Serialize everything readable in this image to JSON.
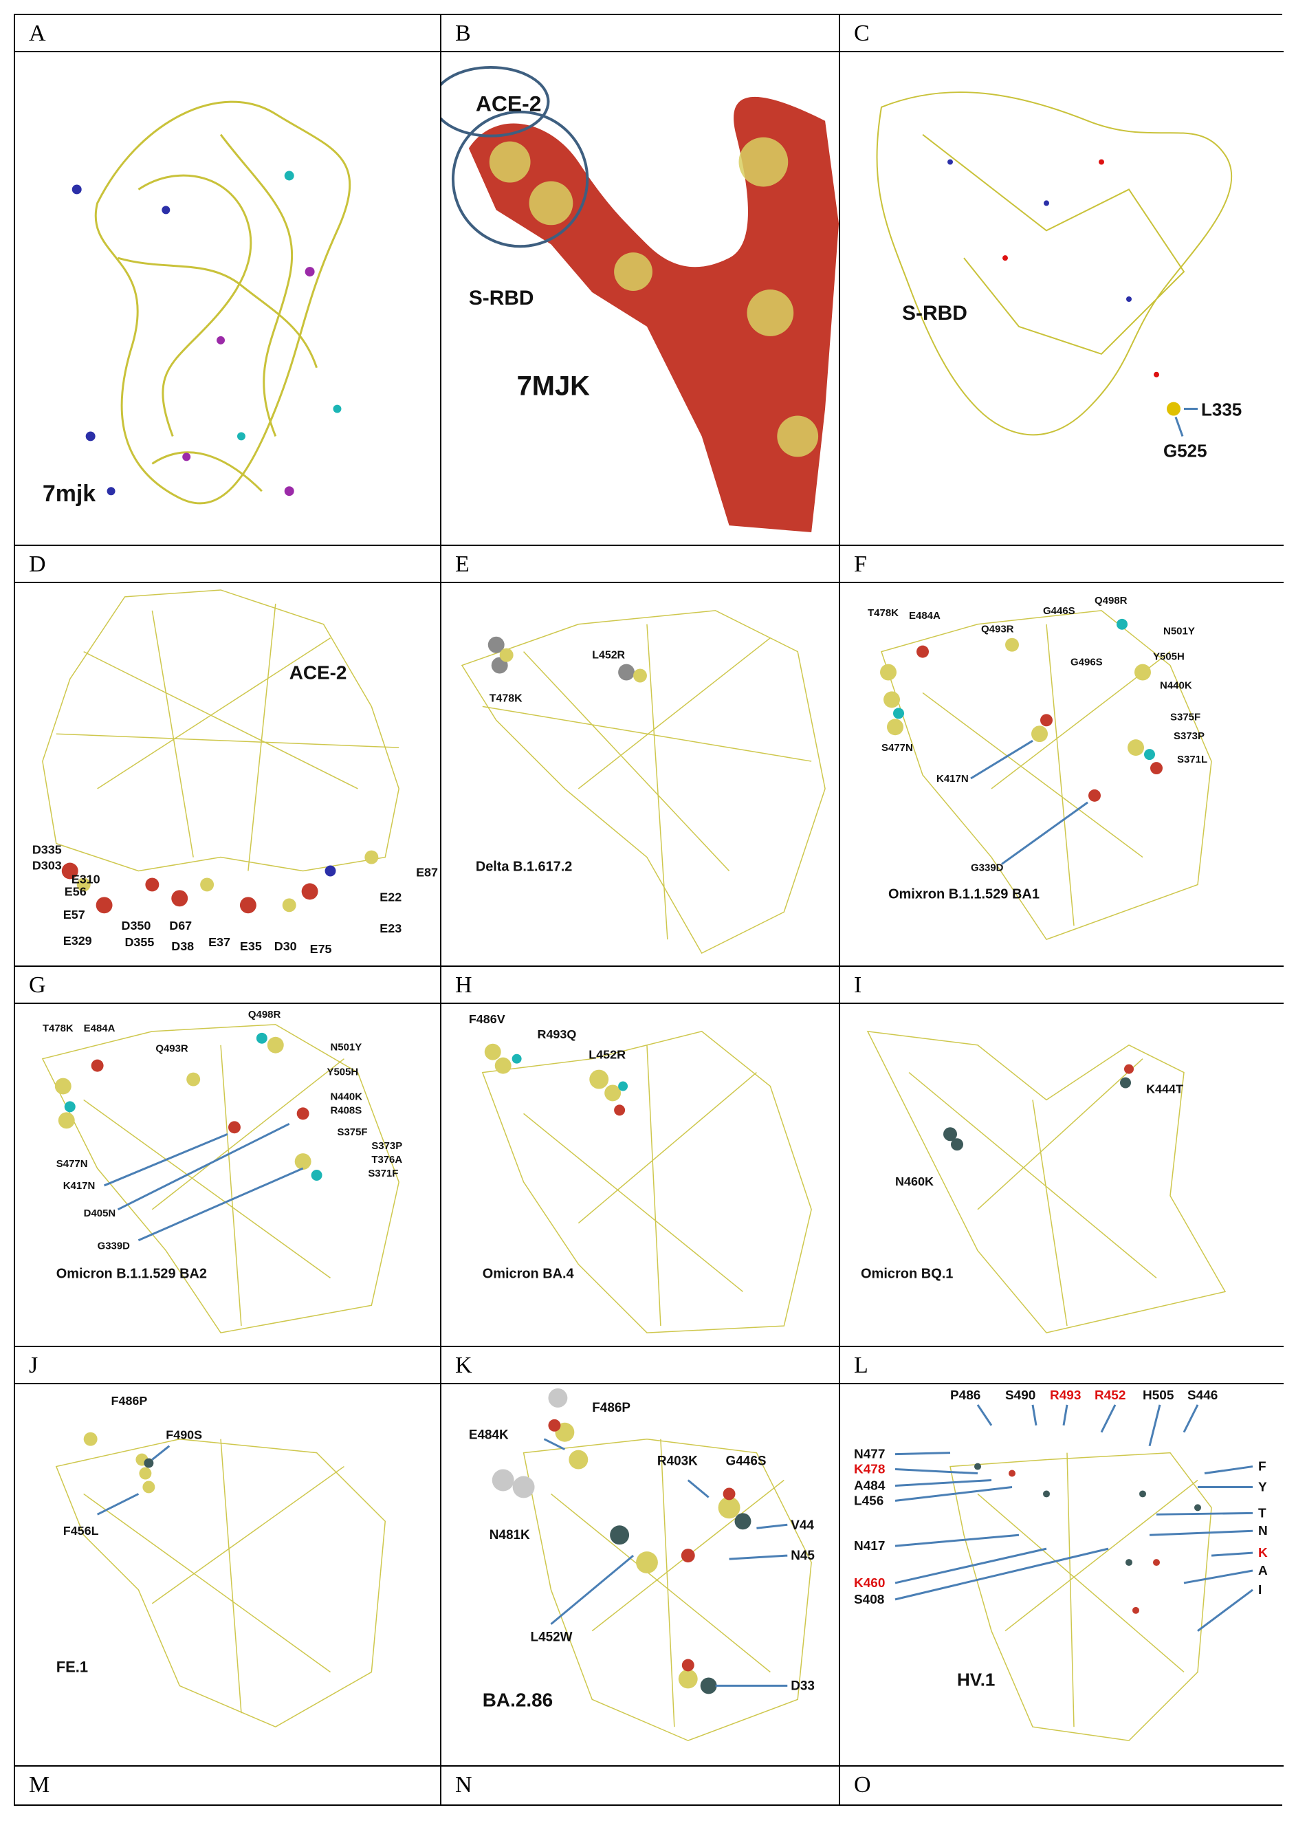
{
  "figure": {
    "panels": [
      {
        "letter": "A",
        "title": "7mjk",
        "labels": []
      },
      {
        "letter": "B",
        "title": "7MJK",
        "labels": [
          "ACE-2",
          "S-RBD"
        ]
      },
      {
        "letter": "C",
        "title": "S-RBD",
        "labels": [
          "L335",
          "G525"
        ]
      },
      {
        "letter": "D",
        "title": "ACE-2",
        "labels": [
          "D335",
          "D303",
          "E310",
          "E56",
          "E57",
          "E329",
          "D350",
          "D355",
          "D67",
          "D38",
          "E37",
          "E35",
          "D30",
          "E75",
          "E23",
          "E22",
          "E87"
        ]
      },
      {
        "letter": "E",
        "title": "Delta  B.1.617.2",
        "labels": [
          "T478K",
          "L452R"
        ]
      },
      {
        "letter": "F",
        "title": "Omixron  B.1.1.529 BA1",
        "labels": [
          "T478K",
          "E484A",
          "Q493R",
          "G446S",
          "Q498R",
          "N501Y",
          "Y505H",
          "G496S",
          "N440K",
          "S477N",
          "K417N",
          "S375F",
          "S373P",
          "S371L",
          "G339D"
        ]
      },
      {
        "letter": "G",
        "title": "Omicron  B.1.1.529 BA2",
        "labels": [
          "T478K",
          "E484A",
          "Q493R",
          "Q498R",
          "N501Y",
          "Y505H",
          "N440K",
          "R408S",
          "S375F",
          "S373P",
          "T376A",
          "S371F",
          "S477N",
          "K417N",
          "D405N",
          "G339D"
        ]
      },
      {
        "letter": "H",
        "title": "Omicron BA.4",
        "labels": [
          "F486V",
          "R493Q",
          "L452R"
        ]
      },
      {
        "letter": "I",
        "title": "Omicron BQ.1",
        "labels": [
          "K444T",
          "N460K"
        ]
      },
      {
        "letter": "J",
        "title": "FE.1",
        "labels": [
          "F486P",
          "F490S",
          "F456L"
        ]
      },
      {
        "letter": "K",
        "title": "BA.2.86",
        "labels": [
          "F486P",
          "E484K",
          "R403K",
          "G446S",
          "V44",
          "N481K",
          "N45",
          "L452W",
          "D33"
        ]
      },
      {
        "letter": "L",
        "title": "HV.1",
        "labels": [
          "P486",
          "S490",
          "R493",
          "R452",
          "H505",
          "S446",
          "N477",
          "K478",
          "A484",
          "L456",
          "N417",
          "K460",
          "S408",
          "F",
          "Y",
          "T",
          "N",
          "K",
          "A",
          "I"
        ]
      },
      {
        "letter": "M",
        "title": "",
        "labels": []
      },
      {
        "letter": "N",
        "title": "",
        "labels": []
      },
      {
        "letter": "O",
        "title": "",
        "labels": []
      }
    ],
    "highlight_color": "#d11111",
    "arrow_color": "#4a7fb5",
    "structure_color": "#c9c23a"
  }
}
